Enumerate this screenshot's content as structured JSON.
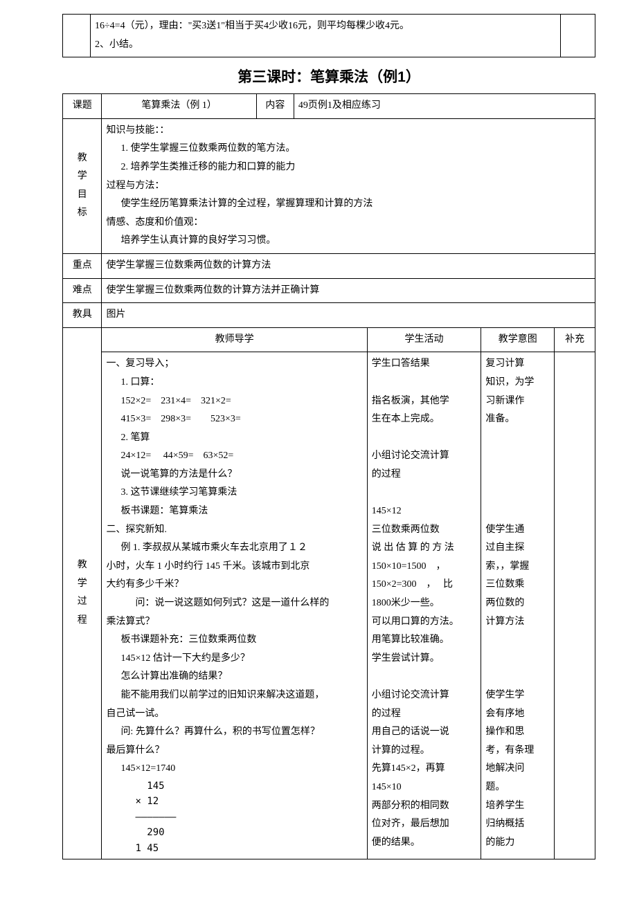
{
  "top_table": {
    "line1": "16÷4=4（元），理由：\"买3送1\"相当于买4少收16元，则平均每棵少收4元。",
    "line2": "2、小结。"
  },
  "title": "第三课时：笔算乘法（例1）",
  "header_row": {
    "col1_label": "课题",
    "col1_value": "笔算乘法（例 1）",
    "col2_label": "内容",
    "col2_value": "49页例1及相应练习"
  },
  "objectives": {
    "label_chars": [
      "教",
      "学",
      "目",
      "标"
    ],
    "lines": [
      {
        "cls": "",
        "text": "知识与技能：："
      },
      {
        "cls": "indent1",
        "text": "1. 使学生掌握三位数乘两位数的笔方法。"
      },
      {
        "cls": "indent1",
        "text": "2. 培养学生类推迁移的能力和口算的能力"
      },
      {
        "cls": "",
        "text": "过程与方法："
      },
      {
        "cls": "indent1",
        "text": "使学生经历笔算乘法计算的全过程，掌握算理和计算的方法"
      },
      {
        "cls": "",
        "text": "情感、态度和价值观："
      },
      {
        "cls": "indent1",
        "text": "培养学生认真计算的良好学习习惯。"
      }
    ]
  },
  "keypoint": {
    "label": "重点",
    "text": "使学生掌握三位数乘两位数的计算方法"
  },
  "difficulty": {
    "label": "难点",
    "text": "使学生掌握三位数乘两位数的计算方法并正确计算"
  },
  "aids": {
    "label": "教具",
    "text": "图片"
  },
  "process": {
    "label_chars": [
      "教",
      "",
      "学",
      "",
      "过",
      "",
      "程"
    ],
    "headers": {
      "teacher": "教师导学",
      "student": "学生活动",
      "intent": "教学意图",
      "sup": "补充"
    },
    "teacher_lines": [
      {
        "cls": "",
        "text": "一、复习导入；"
      },
      {
        "cls": "indent1",
        "text": "1. 口算："
      },
      {
        "cls": "indent1",
        "text": "152×2=　231×4=　321×2="
      },
      {
        "cls": "indent1",
        "text": "415×3=　298×3=　　523×3="
      },
      {
        "cls": "indent1",
        "text": "2. 笔算"
      },
      {
        "cls": "indent1",
        "text": "24×12=　 44×59=　63×52="
      },
      {
        "cls": "indent1",
        "text": "说一说笔算的方法是什么？"
      },
      {
        "cls": "indent1",
        "text": "3. 这节课继续学习笔算乘法"
      },
      {
        "cls": "indent1",
        "text": "板书课题：笔算乘法"
      },
      {
        "cls": "",
        "text": "二、探究新知."
      },
      {
        "cls": "indent1",
        "text": "例 1. 李叔叔从某城市乘火车去北京用了１２"
      },
      {
        "cls": "",
        "text": "小时，火车 1 小时约行 145 千米。该城市到北京"
      },
      {
        "cls": "",
        "text": "大约有多少千米？"
      },
      {
        "cls": "indent2",
        "text": "问：说一说这题如何列式？这是一道什么样的"
      },
      {
        "cls": "",
        "text": "乘法算式？"
      },
      {
        "cls": "indent1",
        "text": "板书课题补充：三位数乘两位数"
      },
      {
        "cls": "indent1",
        "text": "145×12 估计一下大约是多少？"
      },
      {
        "cls": "indent1",
        "text": "怎么计算出准确的结果？"
      },
      {
        "cls": "indent1",
        "text": "能不能用我们以前学过的旧知识来解决这道题，"
      },
      {
        "cls": "",
        "text": "自己试一试。"
      },
      {
        "cls": "indent1",
        "text": "问: 先算什么？再算什么，积的书写位置怎样？"
      },
      {
        "cls": "",
        "text": "最后算什么？"
      },
      {
        "cls": "indent1",
        "text": "145×12=1740"
      }
    ],
    "calc_block": "  145\n× 12\n———————\n  290\n1 45",
    "student_lines": [
      "学生口答结果",
      "",
      "指名板演，其他学",
      "生在本上完成。",
      "",
      "小组讨论交流计算",
      "的过程",
      "",
      "145×12",
      "三位数乘两位数",
      "说 出 估 算 的 方 法",
      "150×10=1500　，",
      "150×2=300　，　 比",
      "1800米少一些。",
      "可以用口算的方法。",
      "用笔算比较准确。",
      "学生尝试计算。",
      "",
      "小组讨论交流计算",
      "的过程",
      "用自己的话说一说",
      "计算的过程。",
      "先算145×2，再算",
      "145×10",
      "两部分积的相同数",
      "位对齐，最后想加",
      "便的结果。"
    ],
    "intent_lines": [
      "复习计算",
      "知识，为学",
      "习新课作",
      "准备。",
      "",
      "",
      "",
      "",
      "",
      "使学生通",
      "过自主探",
      "索，，掌握",
      "三位数乘",
      "两位数的",
      "计算方法",
      "",
      "",
      "",
      "使学生学",
      "会有序地",
      "操作和思",
      "考，有条理",
      "地解决问",
      "题。",
      "培养学生",
      "归纳概括",
      "的能力"
    ]
  }
}
